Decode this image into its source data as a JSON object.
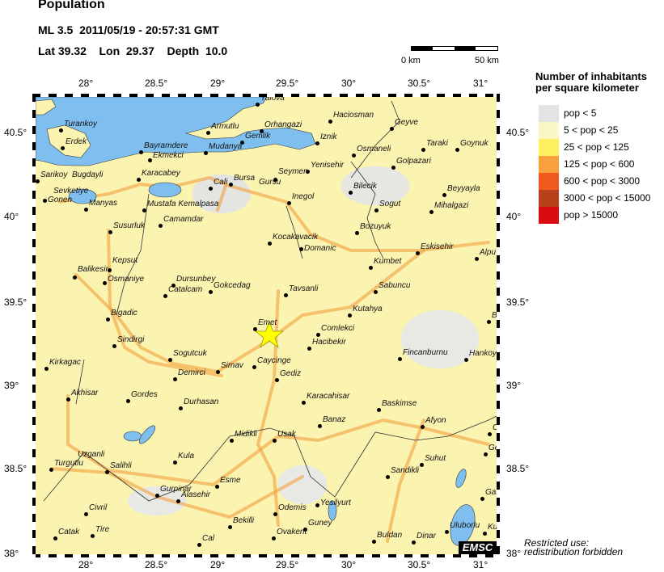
{
  "header": {
    "title": "Population",
    "event": "ML 3.5  2011/05/19 - 20:57:31 GMT",
    "location": "Lat 39.32    Lon  29.37    Depth  10.0"
  },
  "scale_bar": {
    "left_label": "0 km",
    "right_label": "50 km"
  },
  "axes": {
    "lon_ticks": [
      "28°",
      "28.5°",
      "29°",
      "29.5°",
      "30°",
      "30.5°",
      "31°"
    ],
    "lat_ticks": [
      "40.5°",
      "40°",
      "39.5°",
      "39°",
      "38.5°",
      "38°"
    ]
  },
  "legend": {
    "title_line1": "Number of inhabitants",
    "title_line2": "per square kilometer",
    "items": [
      {
        "label": "pop < 5",
        "color": "#e3e3e3"
      },
      {
        "label": "5 < pop < 25",
        "color": "#fbf7c4"
      },
      {
        "label": "25 < pop < 125",
        "color": "#fbf060"
      },
      {
        "label": "125 < pop < 600",
        "color": "#f7a03c"
      },
      {
        "label": "600 < pop < 3000",
        "color": "#f15a1c"
      },
      {
        "label": "3000 < pop < 15000",
        "color": "#b8401a"
      },
      {
        "label": "pop > 15000",
        "color": "#d90d10"
      }
    ]
  },
  "map": {
    "epicenter_icon": "star-icon",
    "epicenter_color": "#ffff00",
    "water_color": "#7fbff0",
    "cities": [
      "Yalova",
      "Turankoy",
      "Erdek",
      "Bayramdere",
      "Ekmekci",
      "Sarikoy",
      "Bugdayli",
      "Sevketiye",
      "Gonen",
      "Manyas",
      "Karacabey",
      "Mustafa Kemalpasa",
      "Camamdar",
      "Susurluk",
      "Armutlu",
      "Orhangazi",
      "Gemlik",
      "Mudanya",
      "Cali",
      "Bursa",
      "Gursu",
      "Haciosman",
      "Geyve",
      "Iznik",
      "Osmaneli",
      "Taraki",
      "Goynuk",
      "Golpazari",
      "Yenisehir",
      "Seymen",
      "Bilecik",
      "Beyyayla",
      "Inegol",
      "Sogut",
      "Mihalgazi",
      "Bozuyuk",
      "Kocakavacik",
      "Domanic",
      "Eskisehir",
      "Alpu",
      "Kepsut",
      "Balikesir",
      "Osmaniye",
      "Dursunbey",
      "Catalcam",
      "Gokcedag",
      "Tavsanli",
      "Kumbet",
      "Sabuncu",
      "Bigadic",
      "Kutahya",
      "Emet",
      "Comlekci",
      "Hacibekir",
      "Sindirgi",
      "Sogutcuk",
      "Simav",
      "Caycinge",
      "Fincanburnu",
      "Hankoy",
      "Kirkagac",
      "Demirci",
      "Gediz",
      "Akhisar",
      "Gordes",
      "Durhasan",
      "Karacahisar",
      "Baskimse",
      "Midikli",
      "Usak",
      "Banaz",
      "Afyon",
      "Kula",
      "Uzganli",
      "Turgutlu",
      "Salihli",
      "Suhut",
      "Sandikli",
      "Esme",
      "Gurpinar",
      "Alasehir",
      "Yesilyurt",
      "Civril",
      "Odemis",
      "Bekilli",
      "Guney",
      "Catak",
      "Tire",
      "Ovakent",
      "Cal",
      "Buldan",
      "Dinar",
      "Uluborlu",
      "Garip",
      "Kur",
      "Ge",
      "Ce",
      "B",
      "C"
    ]
  },
  "logo": "EMSC",
  "notice": {
    "line1": "Restricted use:",
    "line2": "redistribution forbidden"
  }
}
